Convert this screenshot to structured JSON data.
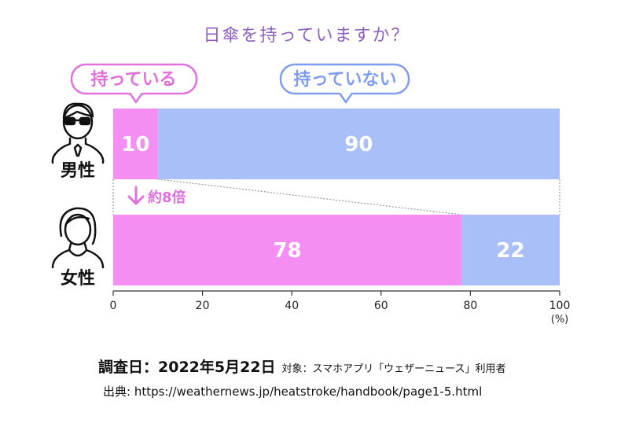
{
  "chart_data": {
    "type": "bar",
    "stacked": true,
    "orientation": "horizontal",
    "title": "日傘を持っていますか？",
    "categories": [
      "男性",
      "女性"
    ],
    "series": [
      {
        "name": "持っている",
        "values": [
          10,
          78
        ],
        "color": "#f58ef2"
      },
      {
        "name": "持っていない",
        "values": [
          90,
          22
        ],
        "color": "#a9bff8"
      }
    ],
    "xlim": [
      0,
      100
    ],
    "xticks": [
      0,
      20,
      40,
      60,
      80,
      100
    ],
    "xunit": "(%)",
    "annotation": "約8倍",
    "grid": false,
    "legend": "top-left (speech bubbles)"
  },
  "footer": {
    "survey_date": "調査日：2022年5月22日",
    "target": "対象：スマホアプリ「ウェザーニュース」利用者",
    "source": "出典: https://weathernews.jp/heatstroke/handbook/page1-5.html"
  },
  "colors": {
    "title": "#8d5fc0",
    "have": "#f58ef2",
    "have_text": "#e070dc",
    "not_have": "#a9bff8",
    "not_have_text": "#7f9df0"
  },
  "icons": [
    "man-with-glasses-icon",
    "woman-icon",
    "down-arrow-icon"
  ]
}
